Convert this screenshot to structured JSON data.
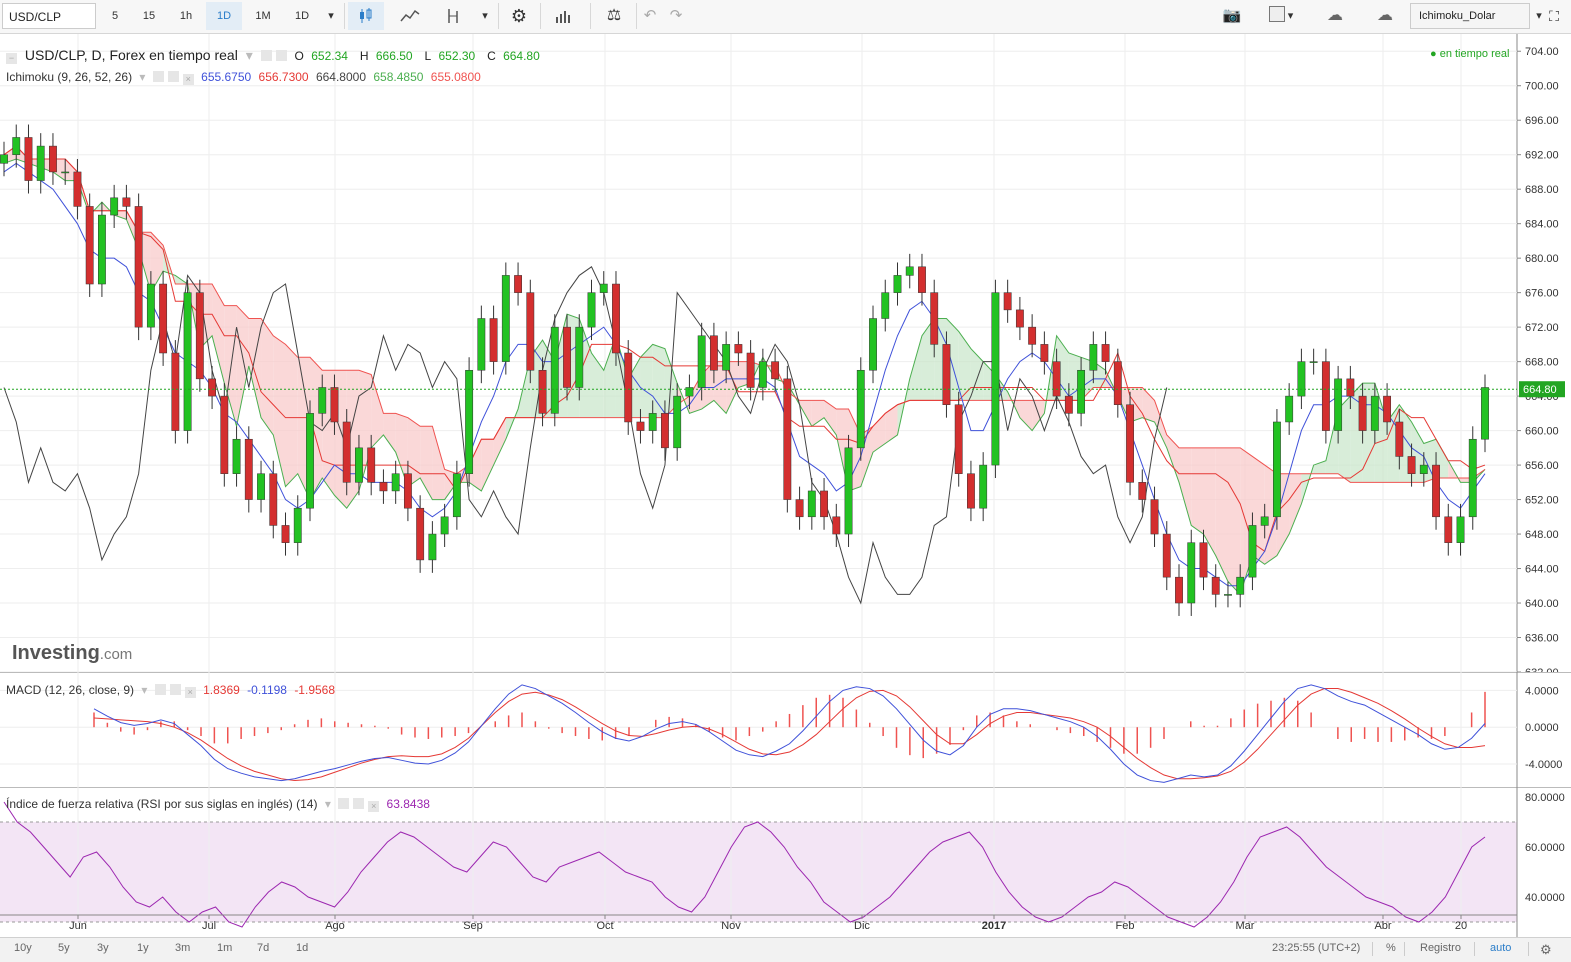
{
  "toolbar": {
    "symbol": "USD/CLP",
    "intervals": [
      "5",
      "15",
      "1h",
      "1D",
      "1M",
      "1D"
    ],
    "active_interval_index": 3,
    "template_name": "Ichimoku_Dolar"
  },
  "legend": {
    "title": "USD/CLP, D, Forex en tiempo real",
    "open_label": "O",
    "open": "652.34",
    "high_label": "H",
    "high": "666.50",
    "low_label": "L",
    "low": "652.30",
    "close_label": "C",
    "close": "664.80",
    "realtime_label": "en tiempo real",
    "ichimoku_label": "Ichimoku (9, 26, 52, 26)",
    "ichimoku_values": [
      "655.6750",
      "656.7300",
      "664.8000",
      "658.4850",
      "655.0800"
    ],
    "macd_label": "MACD (12, 26, close, 9)",
    "macd_values": [
      "1.8369",
      "-0.1198",
      "-1.9568"
    ],
    "rsi_label": "Índice de fuerza relativa (RSI por sus siglas en inglés) (14)",
    "rsi_value": "63.8438"
  },
  "watermark": {
    "brand": "Investing",
    "suffix": ".com"
  },
  "price_axis": [
    "704.00",
    "700.00",
    "696.00",
    "692.00",
    "688.00",
    "684.00",
    "680.00",
    "676.00",
    "672.00",
    "668.00",
    "664.00",
    "660.00",
    "656.00",
    "652.00",
    "648.00",
    "644.00",
    "640.00",
    "636.00",
    "632.00"
  ],
  "last_price_label": "664.80",
  "macd_axis": [
    "4.0000",
    "0.0000",
    "-4.0000"
  ],
  "rsi_axis": [
    "80.0000",
    "60.0000",
    "40.0000"
  ],
  "time_axis": [
    "Jun",
    "Jul",
    "Ago",
    "Sep",
    "Oct",
    "Nov",
    "Dic",
    "2017",
    "Feb",
    "Mar",
    "Abr",
    "20"
  ],
  "bottom": {
    "ranges": [
      "10y",
      "5y",
      "3y",
      "1y",
      "3m",
      "1m",
      "7d",
      "1d"
    ],
    "clock": "23:25:55 (UTC+2)",
    "percent": "%",
    "log": "Registro",
    "auto": "auto"
  },
  "chart_data": [
    {
      "type": "candlestick",
      "title": "USD/CLP, D, Forex en tiempo real",
      "ylim": [
        632,
        706
      ],
      "x_months": [
        "Jun",
        "Jul",
        "Ago",
        "Sep",
        "Oct",
        "Nov",
        "Dic",
        "2017",
        "Feb",
        "Mar",
        "Abr",
        "20"
      ],
      "last_ohlc": {
        "open": 652.34,
        "high": 666.5,
        "low": 652.3,
        "close": 664.8
      },
      "close_series": [
        692,
        694,
        689,
        693,
        690,
        690,
        686,
        677,
        685,
        687,
        686,
        672,
        677,
        669,
        660,
        676,
        666,
        664,
        655,
        659,
        652,
        655,
        649,
        647,
        651,
        662,
        665,
        661,
        654,
        658,
        654,
        653,
        655,
        651,
        645,
        648,
        650,
        655,
        667,
        673,
        668,
        678,
        676,
        667,
        662,
        672,
        665,
        672,
        676,
        677,
        669,
        661,
        660,
        662,
        658,
        664,
        665,
        671,
        667,
        670,
        669,
        665,
        668,
        666,
        652,
        650,
        653,
        650,
        648,
        658,
        667,
        673,
        676,
        678,
        679,
        676,
        670,
        663,
        655,
        651,
        656,
        676,
        674,
        672,
        670,
        668,
        664,
        662,
        667,
        670,
        668,
        663,
        654,
        652,
        648,
        643,
        640,
        647,
        643,
        641,
        641,
        643,
        649,
        650,
        661,
        664,
        668,
        668,
        660,
        666,
        664,
        660,
        664,
        661,
        657,
        655,
        656,
        650,
        647,
        650,
        659,
        665
      ],
      "tenkan_series": [
        690,
        691,
        690,
        689,
        688,
        686,
        684,
        681,
        680,
        680,
        679,
        676,
        675,
        672,
        669,
        668,
        667,
        665,
        662,
        661,
        659,
        657,
        655,
        652,
        651,
        652,
        654,
        656,
        655,
        655,
        654,
        654,
        654,
        653,
        651,
        650,
        651,
        653,
        657,
        661,
        664,
        668,
        670,
        670,
        668,
        668,
        669,
        670,
        671,
        672,
        670,
        667,
        665,
        664,
        662,
        662,
        663,
        665,
        665,
        666,
        666,
        666,
        666,
        665,
        661,
        657,
        656,
        655,
        653,
        654,
        657,
        662,
        667,
        671,
        674,
        675,
        673,
        670,
        665,
        660,
        660,
        663,
        666,
        668,
        669,
        668,
        666,
        664,
        665,
        666,
        666,
        664,
        660,
        656,
        652,
        648,
        645,
        644,
        644,
        643,
        642,
        642,
        644,
        646,
        650,
        655,
        660,
        663,
        663,
        664,
        664,
        663,
        663,
        662,
        660,
        658,
        657,
        654,
        652,
        651,
        653,
        655
      ],
      "macd_ylim": [
        -6.5,
        6
      ],
      "macd_line": [
        2,
        1.2,
        0.5,
        0.2,
        0.4,
        0.8,
        0.4,
        -0.8,
        -2,
        -3.5,
        -4.5,
        -5,
        -5.4,
        -5.6,
        -5.8,
        -5.6,
        -5.2,
        -4.8,
        -4.5,
        -4.1,
        -3.7,
        -3.4,
        -3.3,
        -3.6,
        -3.9,
        -4,
        -3.6,
        -2.8,
        -1.6,
        0.2,
        2,
        3.6,
        4.6,
        4.2,
        3.4,
        2.6,
        1.6,
        0.5,
        -0.5,
        -1.2,
        -1.5,
        -1.0,
        -0.2,
        0.4,
        0.6,
        0.3,
        -0.5,
        -1.5,
        -2.5,
        -3,
        -3.2,
        -2.6,
        -1.8,
        -0.4,
        1.2,
        2.8,
        4,
        4.4,
        4.2,
        3.4,
        2,
        0.3,
        -1.4,
        -2.6,
        -3,
        -2,
        0,
        1.4,
        2,
        2,
        1.8,
        1.4,
        1,
        0.6,
        0,
        -1,
        -2.4,
        -4,
        -5.2,
        -5.8,
        -6,
        -5.6,
        -5.2,
        -5.4,
        -5.2,
        -4.2,
        -2.6,
        -0.8,
        1,
        2.8,
        4.2,
        4.6,
        4.2,
        3.4,
        2.8,
        2.4,
        1.6,
        0.8,
        0,
        -0.8,
        -1.8,
        -2.4,
        -2.2,
        -1.2,
        0.4
      ],
      "macd_signal": [
        1,
        0.9,
        0.8,
        0.7,
        0.6,
        0.4,
        0,
        -0.6,
        -1.4,
        -2.4,
        -3.4,
        -4.2,
        -4.8,
        -5.2,
        -5.6,
        -5.8,
        -5.7,
        -5.4,
        -4.9,
        -4.4,
        -3.9,
        -3.5,
        -3.2,
        -3.1,
        -3.2,
        -3.2,
        -2.9,
        -2.2,
        -1.2,
        0.2,
        1.6,
        2.8,
        3.6,
        3.8,
        3.5,
        3,
        2.2,
        1.3,
        0.4,
        -0.4,
        -0.9,
        -1.0,
        -0.7,
        -0.3,
        0,
        0.1,
        -0.2,
        -0.8,
        -1.6,
        -2.4,
        -2.9,
        -3,
        -2.7,
        -1.9,
        -0.8,
        0.6,
        2,
        3.2,
        3.9,
        4,
        3.4,
        2.2,
        0.7,
        -0.8,
        -1.8,
        -1.8,
        -0.8,
        0.4,
        1.2,
        1.6,
        1.6,
        1.4,
        1.2,
        1,
        0.6,
        0,
        -1,
        -2.2,
        -3.4,
        -4.4,
        -5.2,
        -5.6,
        -5.6,
        -5.5,
        -5.3,
        -4.8,
        -3.8,
        -2.4,
        -0.8,
        0.8,
        2.4,
        3.6,
        4.2,
        4.2,
        3.8,
        3.2,
        2.6,
        1.8,
        0.9,
        -0.1,
        -1.0,
        -1.8,
        -2.2,
        -2.2,
        -2.0
      ],
      "rsi_ylim": [
        24,
        84
      ],
      "rsi_series": [
        78,
        70,
        66,
        60,
        54,
        48,
        56,
        58,
        52,
        44,
        38,
        36,
        40,
        34,
        30,
        34,
        36,
        30,
        28,
        36,
        42,
        46,
        44,
        40,
        38,
        36,
        42,
        50,
        56,
        62,
        66,
        64,
        60,
        56,
        52,
        50,
        56,
        62,
        60,
        54,
        48,
        46,
        52,
        54,
        56,
        58,
        54,
        50,
        48,
        46,
        40,
        36,
        34,
        40,
        50,
        60,
        68,
        70,
        66,
        60,
        52,
        46,
        38,
        34,
        30,
        32,
        36,
        40,
        46,
        52,
        58,
        62,
        64,
        66,
        60,
        50,
        42,
        36,
        32,
        30,
        32,
        36,
        40,
        42,
        46,
        44,
        40,
        36,
        32,
        30,
        28,
        32,
        38,
        46,
        56,
        64,
        66,
        68,
        64,
        58,
        52,
        48,
        44,
        40,
        38,
        36,
        32,
        30,
        34,
        40,
        50,
        60,
        64
      ],
      "rsi_band": [
        30,
        70
      ],
      "rsi_color": "#9c27b0"
    }
  ],
  "colors": {
    "up": "#22c222",
    "down": "#d32f2f",
    "tenkan": "#3f51d9",
    "kijun": "#e53935",
    "chikou": "#444444",
    "span_a": "#4caf50",
    "span_b": "#ef5350",
    "cloud_up": "#c8e6c9",
    "cloud_down": "#f8c8c8",
    "last_price": "#22a522"
  }
}
